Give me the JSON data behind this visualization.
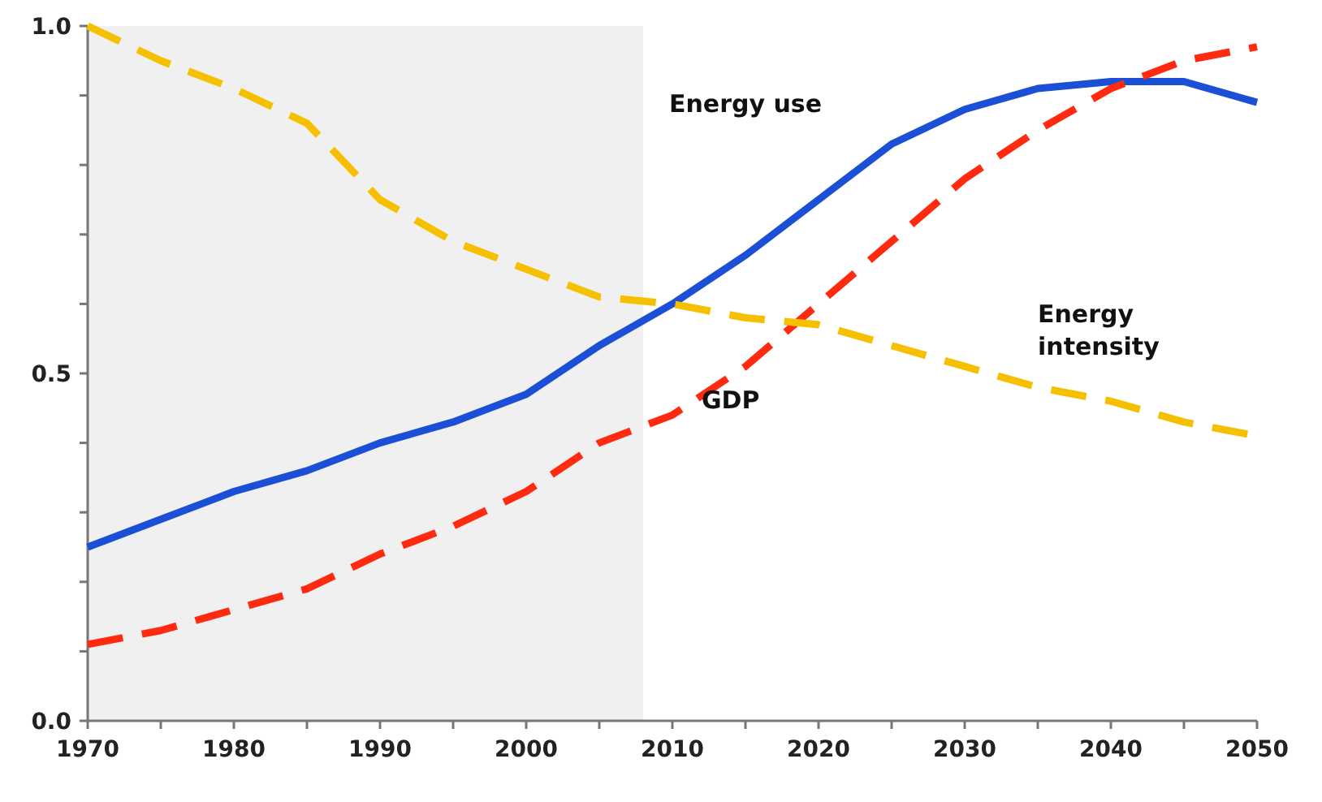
{
  "chart_data": {
    "type": "line",
    "x": [
      1970,
      1975,
      1980,
      1985,
      1990,
      1995,
      2000,
      2005,
      2010,
      2015,
      2020,
      2025,
      2030,
      2035,
      2040,
      2045,
      2050
    ],
    "series": [
      {
        "name": "Energy use",
        "color": "#1a4fd6",
        "line_style": "solid",
        "values": [
          0.25,
          0.29,
          0.33,
          0.36,
          0.4,
          0.43,
          0.47,
          0.54,
          0.6,
          0.67,
          0.75,
          0.83,
          0.88,
          0.91,
          0.92,
          0.92,
          0.89
        ]
      },
      {
        "name": "GDP",
        "color": "#ff2a10",
        "line_style": "dashed",
        "values": [
          0.11,
          0.13,
          0.16,
          0.19,
          0.24,
          0.28,
          0.33,
          0.4,
          0.44,
          0.51,
          0.6,
          0.69,
          0.78,
          0.85,
          0.91,
          0.95,
          0.97
        ]
      },
      {
        "name": "Energy intensity",
        "color": "#f5c000",
        "line_style": "dashed",
        "values": [
          1.0,
          0.95,
          0.91,
          0.86,
          0.75,
          0.69,
          0.65,
          0.61,
          0.6,
          0.58,
          0.57,
          0.54,
          0.51,
          0.48,
          0.46,
          0.43,
          0.41
        ]
      }
    ],
    "xlim": [
      1970,
      2050
    ],
    "xticks": [
      1970,
      {
        "value": 1975,
        "label": null
      },
      1980,
      {
        "value": 1985,
        "label": null
      },
      1990,
      {
        "value": 1995,
        "label": null
      },
      2000,
      {
        "value": 2005,
        "label": null
      },
      2010,
      {
        "value": 2015,
        "label": null
      },
      2020,
      {
        "value": 2025,
        "label": null
      },
      2030,
      {
        "value": 2035,
        "label": null
      },
      2040,
      {
        "value": 2045,
        "label": null
      },
      2050
    ],
    "ylim": [
      0,
      1
    ],
    "yticks": [
      {
        "value": 0,
        "label": "0.0"
      },
      {
        "value": 0.1,
        "label": null
      },
      {
        "value": 0.2,
        "label": null
      },
      {
        "value": 0.3,
        "label": null
      },
      {
        "value": 0.4,
        "label": null
      },
      {
        "value": 0.5,
        "label": "0.5"
      },
      {
        "value": 0.6,
        "label": null
      },
      {
        "value": 0.7,
        "label": null
      },
      {
        "value": 0.8,
        "label": null
      },
      {
        "value": 0.9,
        "label": null
      },
      {
        "value": 1,
        "label": "1.0"
      }
    ],
    "bands": [
      {
        "axis": "x",
        "from": 1970,
        "to": 2008,
        "color": "#f0f0f0"
      }
    ],
    "grid": false,
    "marker": "none"
  }
}
